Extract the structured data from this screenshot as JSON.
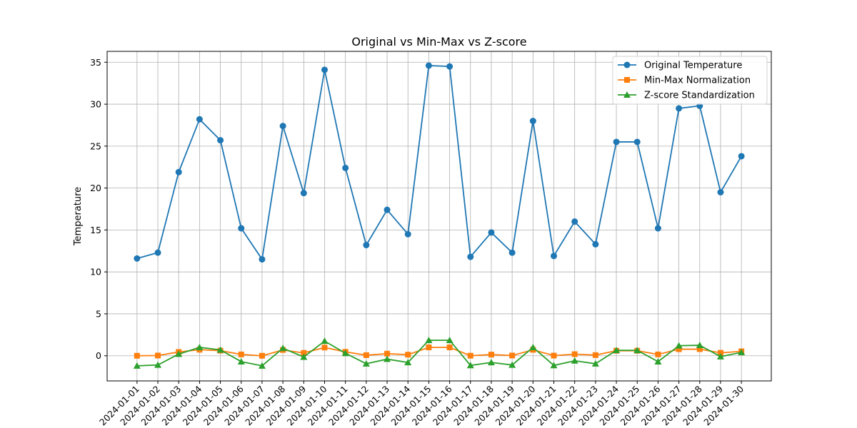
{
  "chart_data": {
    "type": "line",
    "title": "Original vs Min-Max vs Z-score",
    "xlabel": "",
    "ylabel": "Temperature",
    "ylim": [
      -3,
      36.3
    ],
    "yticks": [
      0,
      5,
      10,
      15,
      20,
      25,
      30,
      35
    ],
    "grid": true,
    "legend_position": "top-right",
    "categories": [
      "2024-01-01",
      "2024-01-02",
      "2024-01-03",
      "2024-01-04",
      "2024-01-05",
      "2024-01-06",
      "2024-01-07",
      "2024-01-08",
      "2024-01-09",
      "2024-01-10",
      "2024-01-11",
      "2024-01-12",
      "2024-01-13",
      "2024-01-14",
      "2024-01-15",
      "2024-01-16",
      "2024-01-17",
      "2024-01-18",
      "2024-01-19",
      "2024-01-20",
      "2024-01-21",
      "2024-01-22",
      "2024-01-23",
      "2024-01-24",
      "2024-01-25",
      "2024-01-26",
      "2024-01-27",
      "2024-01-28",
      "2024-01-29",
      "2024-01-30"
    ],
    "series": [
      {
        "name": "Original Temperature",
        "color": "#1f77b4",
        "marker": "circle",
        "values": [
          11.6,
          12.3,
          21.9,
          28.2,
          25.7,
          15.2,
          11.5,
          27.4,
          19.4,
          34.1,
          22.4,
          13.2,
          17.4,
          14.5,
          34.6,
          34.5,
          11.8,
          14.7,
          12.3,
          28.0,
          11.9,
          16.0,
          13.3,
          25.5,
          25.5,
          15.2,
          29.5,
          29.8,
          19.5,
          23.8
        ]
      },
      {
        "name": "Min-Max Normalization",
        "color": "#ff7f0e",
        "marker": "square",
        "values": [
          0.0,
          0.03,
          0.45,
          0.72,
          0.61,
          0.16,
          0.0,
          0.69,
          0.34,
          0.98,
          0.47,
          0.07,
          0.25,
          0.13,
          1.0,
          1.0,
          0.01,
          0.14,
          0.03,
          0.71,
          0.02,
          0.19,
          0.08,
          0.6,
          0.6,
          0.16,
          0.78,
          0.79,
          0.35,
          0.53
        ]
      },
      {
        "name": "Z-score Standardization",
        "color": "#2ca02c",
        "marker": "triangle",
        "values": [
          -1.2,
          -1.1,
          0.2,
          1.0,
          0.7,
          -0.7,
          -1.2,
          0.9,
          -0.15,
          1.75,
          0.3,
          -0.95,
          -0.4,
          -0.8,
          1.85,
          1.85,
          -1.15,
          -0.8,
          -1.1,
          1.0,
          -1.15,
          -0.6,
          -0.95,
          0.65,
          0.65,
          -0.7,
          1.2,
          1.25,
          -0.1,
          0.4
        ]
      }
    ]
  }
}
